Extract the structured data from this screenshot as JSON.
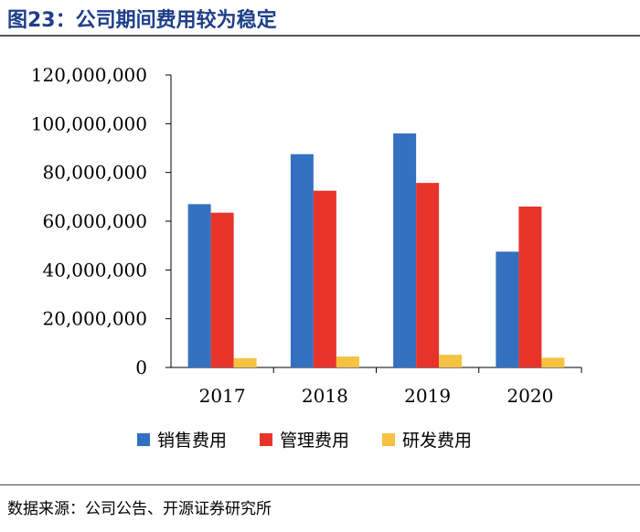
{
  "header": {
    "figure_title": "图23：公司期间费用较为稳定"
  },
  "footer": {
    "source": "数据来源：公司公告、开源证券研究所"
  },
  "colors": {
    "title": "#1f3f8a",
    "series": [
      "#3370c0",
      "#e8332a",
      "#f5c242"
    ]
  },
  "chart_data": {
    "type": "bar",
    "title": "",
    "xlabel": "",
    "ylabel": "",
    "categories": [
      "2017",
      "2018",
      "2019",
      "2020"
    ],
    "series": [
      {
        "name": "销售费用",
        "values": [
          67000000,
          87500000,
          96000000,
          47500000
        ]
      },
      {
        "name": "管理费用",
        "values": [
          63500000,
          72500000,
          75700000,
          66000000
        ]
      },
      {
        "name": "研发费用",
        "values": [
          3800000,
          4500000,
          5200000,
          4000000
        ]
      }
    ],
    "ylim": [
      0,
      120000000
    ],
    "yticks": [
      "0",
      "20,000,000",
      "40,000,000",
      "60,000,000",
      "80,000,000",
      "100,000,000",
      "120,000,000"
    ],
    "grid": false,
    "legend_position": "bottom"
  }
}
